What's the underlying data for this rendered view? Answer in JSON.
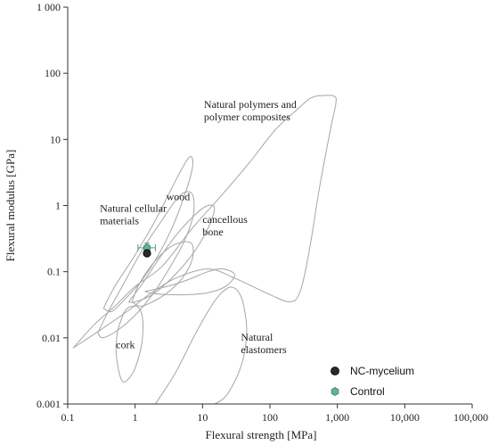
{
  "chart_data": {
    "type": "scatter",
    "title": "",
    "xlabel": "Flexural strength [MPa]",
    "ylabel": "Flexural modulus [GPa]",
    "x_scale": "log",
    "y_scale": "log",
    "xlim": [
      0.1,
      100000
    ],
    "ylim": [
      0.001,
      1000
    ],
    "x_ticks": [
      {
        "value": 0.1,
        "label": "0.1"
      },
      {
        "value": 1,
        "label": "1"
      },
      {
        "value": 10,
        "label": "10"
      },
      {
        "value": 100,
        "label": "100"
      },
      {
        "value": 1000,
        "label": "1,000"
      },
      {
        "value": 10000,
        "label": "10,000"
      },
      {
        "value": 100000,
        "label": "100,000"
      }
    ],
    "y_ticks": [
      {
        "value": 0.001,
        "label": "0.001"
      },
      {
        "value": 0.01,
        "label": "0.01"
      },
      {
        "value": 0.1,
        "label": "0.1"
      },
      {
        "value": 1,
        "label": "1"
      },
      {
        "value": 10,
        "label": "10"
      },
      {
        "value": 100,
        "label": "100"
      },
      {
        "value": 1000,
        "label": "1 000"
      }
    ],
    "grid": false,
    "legend_position": "bottom-right",
    "series": [
      {
        "name": "NC-mycelium",
        "marker": "circle",
        "color": "#2b2b2b",
        "points": [
          {
            "x": 1.5,
            "y": 0.19
          }
        ]
      },
      {
        "name": "Control",
        "marker": "hexagon",
        "color": "#5fb59a",
        "points": [
          {
            "x": 1.5,
            "y": 0.23,
            "xerr": [
              1.1,
              2.0
            ],
            "yerr": [
              0.2,
              0.27
            ]
          }
        ]
      }
    ],
    "regions": [
      {
        "label_lines": [
          "Natural polymers and",
          "polymer composites"
        ],
        "label_at": [
          10.5,
          30
        ],
        "outline": [
          [
            0.12,
            0.007
          ],
          [
            0.3,
            0.013
          ],
          [
            0.8,
            0.026
          ],
          [
            1.6,
            0.045
          ],
          [
            4,
            0.08
          ],
          [
            12,
            0.11
          ],
          [
            30,
            0.08
          ],
          [
            100,
            0.045
          ],
          [
            200,
            0.035
          ],
          [
            280,
            0.05
          ],
          [
            380,
            0.2
          ],
          [
            550,
            2
          ],
          [
            800,
            15
          ],
          [
            950,
            35
          ],
          [
            900,
            45
          ],
          [
            600,
            46
          ],
          [
            400,
            42
          ],
          [
            250,
            28
          ],
          [
            120,
            14
          ],
          [
            50,
            4.5
          ],
          [
            20,
            1.5
          ],
          [
            7,
            0.45
          ],
          [
            2.5,
            0.12
          ],
          [
            1,
            0.06
          ],
          [
            0.5,
            0.03
          ],
          [
            0.25,
            0.016
          ],
          [
            0.12,
            0.007
          ]
        ]
      },
      {
        "label_lines": [
          "wood"
        ],
        "label_at": [
          2.9,
          1.2
        ],
        "outline": [
          [
            0.34,
            0.028
          ],
          [
            0.5,
            0.06
          ],
          [
            1,
            0.18
          ],
          [
            2,
            0.6
          ],
          [
            4,
            2.4
          ],
          [
            6,
            5
          ],
          [
            7,
            5.3
          ],
          [
            7,
            3.5
          ],
          [
            5.5,
            1.5
          ],
          [
            3.5,
            0.45
          ],
          [
            2,
            0.15
          ],
          [
            1.2,
            0.07
          ],
          [
            0.7,
            0.038
          ],
          [
            0.45,
            0.025
          ],
          [
            0.34,
            0.028
          ]
        ]
      },
      {
        "label_lines": [
          "Natural cellular",
          "materials"
        ],
        "label_at": [
          0.3,
          0.8
        ],
        "outline": [
          [
            0.28,
            0.012
          ],
          [
            0.4,
            0.025
          ],
          [
            0.7,
            0.07
          ],
          [
            1.3,
            0.22
          ],
          [
            2.5,
            0.6
          ],
          [
            4,
            1.2
          ],
          [
            5.5,
            1.6
          ],
          [
            7,
            1.5
          ],
          [
            7.5,
            1
          ],
          [
            7,
            0.6
          ],
          [
            5,
            0.25
          ],
          [
            3,
            0.1
          ],
          [
            1.8,
            0.045
          ],
          [
            1,
            0.022
          ],
          [
            0.55,
            0.013
          ],
          [
            0.33,
            0.01
          ],
          [
            0.28,
            0.012
          ]
        ]
      },
      {
        "label_lines": [
          "cancellous",
          "bone"
        ],
        "label_at": [
          10,
          0.55
        ],
        "outline": [
          [
            0.8,
            0.035
          ],
          [
            1.2,
            0.06
          ],
          [
            2,
            0.13
          ],
          [
            4,
            0.35
          ],
          [
            8,
            0.75
          ],
          [
            12,
            1
          ],
          [
            15,
            0.9
          ],
          [
            12,
            0.45
          ],
          [
            7,
            0.18
          ],
          [
            3.5,
            0.08
          ],
          [
            1.8,
            0.045
          ],
          [
            1,
            0.035
          ],
          [
            0.8,
            0.035
          ]
        ]
      },
      {
        "label_lines": [
          "cork"
        ],
        "label_at": [
          0.52,
          0.007
        ],
        "outline": [
          [
            0.55,
            0.013
          ],
          [
            0.7,
            0.025
          ],
          [
            0.9,
            0.03
          ],
          [
            1.15,
            0.028
          ],
          [
            1.3,
            0.018
          ],
          [
            1.25,
            0.008
          ],
          [
            1,
            0.0035
          ],
          [
            0.8,
            0.0024
          ],
          [
            0.65,
            0.0022
          ],
          [
            0.56,
            0.0035
          ],
          [
            0.52,
            0.007
          ],
          [
            0.55,
            0.013
          ]
        ]
      },
      {
        "label_lines": [
          "Natural",
          "elastomers"
        ],
        "label_at": [
          37,
          0.009
        ],
        "outline": [
          [
            2,
            0.001
          ],
          [
            4,
            0.003
          ],
          [
            8,
            0.012
          ],
          [
            14,
            0.032
          ],
          [
            20,
            0.05
          ],
          [
            28,
            0.058
          ],
          [
            38,
            0.04
          ],
          [
            45,
            0.015
          ],
          [
            42,
            0.006
          ],
          [
            33,
            0.0027
          ],
          [
            22,
            0.0013
          ],
          [
            15,
            0.001
          ]
        ]
      },
      {
        "label_lines": [],
        "label_at": [
          1,
          1
        ],
        "outline": [
          [
            0.9,
            0.035
          ],
          [
            1.1,
            0.06
          ],
          [
            1.7,
            0.12
          ],
          [
            3,
            0.22
          ],
          [
            5,
            0.28
          ],
          [
            7,
            0.26
          ],
          [
            7,
            0.15
          ],
          [
            5,
            0.08
          ],
          [
            3,
            0.048
          ],
          [
            1.8,
            0.035
          ],
          [
            1.2,
            0.03
          ],
          [
            0.9,
            0.035
          ]
        ]
      },
      {
        "label_lines": [],
        "label_at": [
          1,
          1
        ],
        "outline": [
          [
            1.4,
            0.05
          ],
          [
            3,
            0.06
          ],
          [
            6,
            0.075
          ],
          [
            12,
            0.1
          ],
          [
            20,
            0.11
          ],
          [
            30,
            0.09
          ],
          [
            22,
            0.06
          ],
          [
            12,
            0.048
          ],
          [
            6,
            0.045
          ],
          [
            3,
            0.045
          ],
          [
            1.8,
            0.047
          ],
          [
            1.4,
            0.05
          ]
        ]
      }
    ]
  }
}
